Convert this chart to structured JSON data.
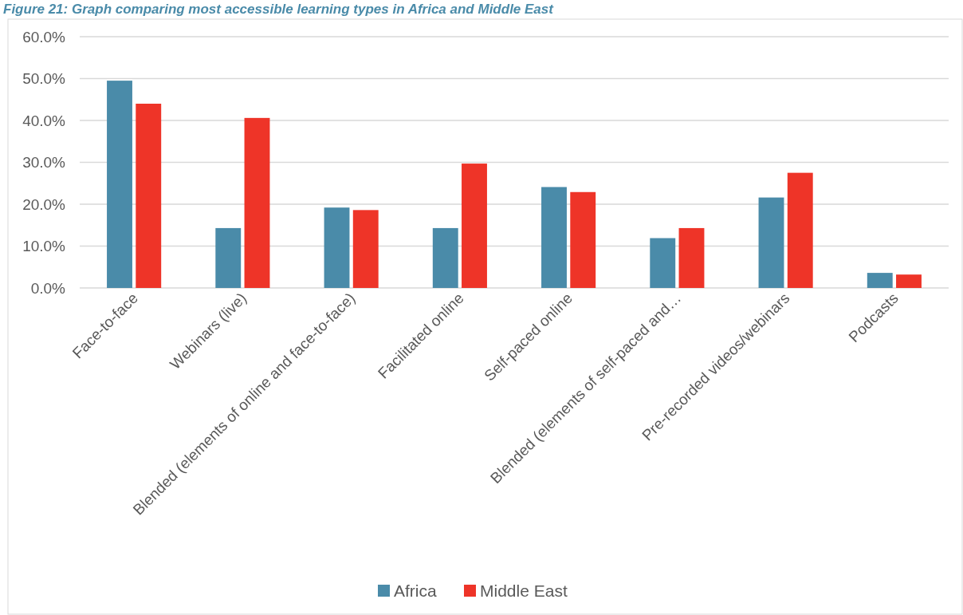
{
  "chart_data": {
    "type": "bar",
    "title": "Figure 21: Graph comparing most accessible learning types in Africa and Middle East",
    "categories": [
      "Face-to-face",
      "Webinars (live)",
      "Blended (elements of online and face-to-face)",
      "Facilitated online",
      "Self-paced online",
      "Blended (elements of self-paced and…",
      "Pre-recorded videos/webinars",
      "Podcasts"
    ],
    "series": [
      {
        "name": "Africa",
        "color": "#4a8ba9",
        "values": [
          49.5,
          14.3,
          19.2,
          14.3,
          24.1,
          11.9,
          21.6,
          3.6
        ]
      },
      {
        "name": "Middle East",
        "color": "#ee3428",
        "values": [
          44.0,
          40.6,
          18.6,
          29.7,
          22.9,
          14.3,
          27.5,
          3.2
        ]
      }
    ],
    "ylim": [
      0,
      60
    ],
    "yticks": [
      {
        "value": 0,
        "label": "0.0%"
      },
      {
        "value": 10,
        "label": "10.0%"
      },
      {
        "value": 20,
        "label": "20.0%"
      },
      {
        "value": 30,
        "label": "30.0%"
      },
      {
        "value": 40,
        "label": "40.0%"
      },
      {
        "value": 50,
        "label": "50.0%"
      },
      {
        "value": 60,
        "label": "60.0%"
      }
    ],
    "grid": "y",
    "legend": "bottom"
  }
}
